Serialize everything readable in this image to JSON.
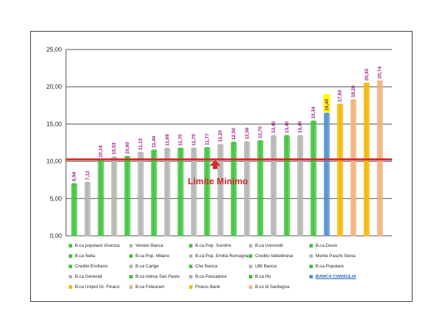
{
  "colors": {
    "green": "#3ec43e",
    "grey": "#b4b4b4",
    "blue": "#4f8fd4",
    "gold": "#f5b800",
    "peach": "#f0b27a",
    "limit_line": "#d42a2a",
    "value_label": "#a0208c",
    "highlight": "#ffff00"
  },
  "chart_data": {
    "type": "bar",
    "title": "",
    "xlabel": "",
    "ylabel": "",
    "ylim": [
      0,
      25
    ],
    "yticks": [
      "0,00",
      "5,00",
      "10,00",
      "15,00",
      "20,00",
      "25,00"
    ],
    "grid": true,
    "legend_position": "bottom",
    "values": [
      6.94,
      7.12,
      10.14,
      10.53,
      10.6,
      11.13,
      11.44,
      11.69,
      11.7,
      11.7,
      11.77,
      12.2,
      12.5,
      12.56,
      12.7,
      13.4,
      13.4,
      13.4,
      15.34,
      16.4,
      17.6,
      18.2,
      20.43,
      20.74
    ],
    "value_labels": [
      "6,94",
      "7,12",
      "10,14",
      "10,53",
      "10,60",
      "11,13",
      "11,44",
      "11,69",
      "11,70",
      "11,70",
      "11,77",
      "12,20",
      "12,50",
      "12,56",
      "12,70",
      "13,40",
      "13,40",
      "13,40",
      "15,34",
      "16,40",
      "17,60",
      "18,20",
      "20,43",
      "20,74"
    ],
    "bar_colors": [
      "green",
      "grey",
      "green",
      "grey",
      "green",
      "grey",
      "green",
      "grey",
      "green",
      "grey",
      "green",
      "grey",
      "green",
      "grey",
      "green",
      "grey",
      "green",
      "grey",
      "green",
      "blue",
      "gold",
      "peach",
      "gold",
      "peach"
    ],
    "highlighted_index": 19,
    "limit": {
      "value": 10.25,
      "label": "Limite Minimo"
    },
    "legend": [
      {
        "label": "B.ca popolare Vicenza",
        "color": "green"
      },
      {
        "label": "Veneto Banca",
        "color": "grey"
      },
      {
        "label": "B.ca Pop. Sondrio",
        "color": "green"
      },
      {
        "label": "B.ca Unicredit",
        "color": "grey"
      },
      {
        "label": "B.ca Desio",
        "color": "green"
      },
      {
        "label": "B.ca Sella",
        "color": "green"
      },
      {
        "label": "B.ca Pop. Milano",
        "color": "green"
      },
      {
        "label": "B.ca Pop. Emilia Romagna",
        "color": "grey"
      },
      {
        "label": "Credito Valtellinese",
        "color": "green"
      },
      {
        "label": "Monte Paschi Siena",
        "color": "grey"
      },
      {
        "label": "Credito Emiliano",
        "color": "green"
      },
      {
        "label": "B.ca Carige",
        "color": "grey"
      },
      {
        "label": "Che Banca",
        "color": "green"
      },
      {
        "label": "UBI Banca",
        "color": "grey"
      },
      {
        "label": "B.ca Popolare",
        "color": "green"
      },
      {
        "label": "B.ca Generali",
        "color": "grey"
      },
      {
        "label": "B.ca Intesa San Paolo",
        "color": "green"
      },
      {
        "label": "B.ca Passadore",
        "color": "grey"
      },
      {
        "label": "B.ca Ifis",
        "color": "green"
      },
      {
        "label": "BANCA CONSULIA",
        "color": "blue",
        "special": true
      },
      {
        "label": "B.ca Unipol Gr. Finanz.",
        "color": "gold"
      },
      {
        "label": "B.ca Fideuram",
        "color": "peach"
      },
      {
        "label": "Fineco Bank",
        "color": "gold"
      },
      {
        "label": "B.co di Sardegna",
        "color": "peach"
      }
    ]
  }
}
